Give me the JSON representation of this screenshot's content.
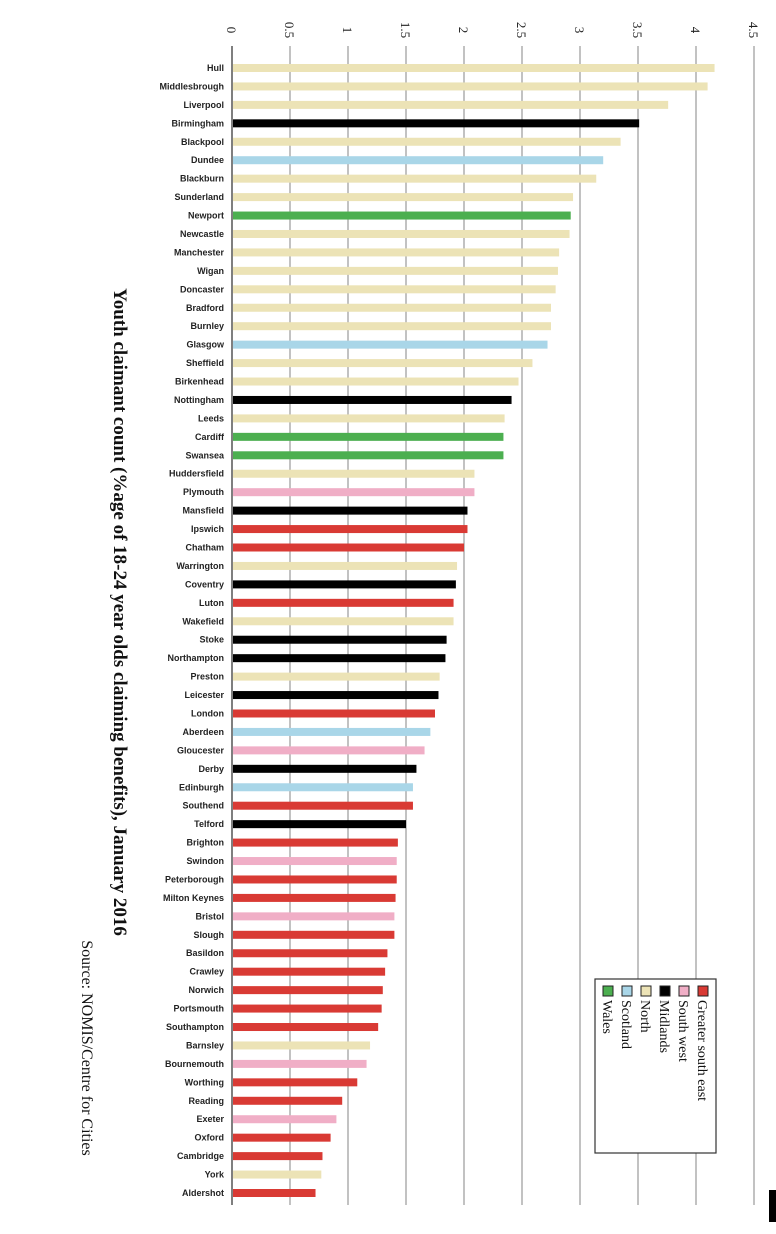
{
  "chart_data": {
    "type": "bar",
    "orientation": "rotated 90 degrees clockwise",
    "title": "Youth claimant count (%age of 18-24 year olds claiming benefits), January 2016",
    "source": "Source: NOMIS/Centre for Cities",
    "xlim": [
      0,
      4.5
    ],
    "ticks": [
      "0",
      "0.5",
      "1",
      "1.5",
      "2",
      "2.5",
      "3",
      "3.5",
      "4",
      "4.5"
    ],
    "tick_values": [
      0,
      0.5,
      1,
      1.5,
      2,
      2.5,
      3,
      3.5,
      4,
      4.5
    ],
    "grid": true,
    "legend_position": "bottom-right",
    "legend": [
      {
        "name": "Greater south east",
        "color": "#d93a34"
      },
      {
        "name": "South west",
        "color": "#f0aec6"
      },
      {
        "name": "Midlands",
        "color": "#000000"
      },
      {
        "name": "North",
        "color": "#ece3b6"
      },
      {
        "name": "Scotland",
        "color": "#a9d6e8"
      },
      {
        "name": "Wales",
        "color": "#4caf50"
      }
    ],
    "categories": [
      "Hull",
      "Middlesbrough",
      "Liverpool",
      "Birmingham",
      "Blackpool",
      "Dundee",
      "Blackburn",
      "Sunderland",
      "Newport",
      "Newcastle",
      "Manchester",
      "Wigan",
      "Doncaster",
      "Bradford",
      "Burnley",
      "Glasgow",
      "Sheffield",
      "Birkenhead",
      "Nottingham",
      "Leeds",
      "Cardiff",
      "Swansea",
      "Huddersfield",
      "Plymouth",
      "Mansfield",
      "Ipswich",
      "Chatham",
      "Warrington",
      "Coventry",
      "Luton",
      "Wakefield",
      "Stoke",
      "Northampton",
      "Preston",
      "Leicester",
      "London",
      "Aberdeen",
      "Gloucester",
      "Derby",
      "Edinburgh",
      "Southend",
      "Telford",
      "Brighton",
      "Swindon",
      "Peterborough",
      "Milton Keynes",
      "Bristol",
      "Slough",
      "Basildon",
      "Crawley",
      "Norwich",
      "Portsmouth",
      "Southampton",
      "Barnsley",
      "Bournemouth",
      "Worthing",
      "Reading",
      "Exeter",
      "Oxford",
      "Cambridge",
      "York",
      "Aldershot"
    ],
    "values": [
      4.16,
      4.1,
      3.76,
      3.51,
      3.35,
      3.2,
      3.14,
      2.94,
      2.92,
      2.91,
      2.82,
      2.81,
      2.79,
      2.75,
      2.75,
      2.72,
      2.59,
      2.47,
      2.41,
      2.35,
      2.34,
      2.34,
      2.09,
      2.09,
      2.03,
      2.03,
      2.0,
      1.94,
      1.93,
      1.91,
      1.91,
      1.85,
      1.84,
      1.79,
      1.78,
      1.75,
      1.71,
      1.66,
      1.59,
      1.56,
      1.56,
      1.5,
      1.43,
      1.42,
      1.42,
      1.41,
      1.4,
      1.4,
      1.34,
      1.32,
      1.3,
      1.29,
      1.26,
      1.19,
      1.16,
      1.08,
      0.95,
      0.9,
      0.85,
      0.78,
      0.77,
      0.72
    ],
    "regions": [
      "North",
      "North",
      "North",
      "Midlands",
      "North",
      "Scotland",
      "North",
      "North",
      "Wales",
      "North",
      "North",
      "North",
      "North",
      "North",
      "North",
      "Scotland",
      "North",
      "North",
      "Midlands",
      "North",
      "Wales",
      "Wales",
      "North",
      "South west",
      "Midlands",
      "Greater south east",
      "Greater south east",
      "North",
      "Midlands",
      "Greater south east",
      "North",
      "Midlands",
      "Midlands",
      "North",
      "Midlands",
      "Greater south east",
      "Scotland",
      "South west",
      "Midlands",
      "Scotland",
      "Greater south east",
      "Midlands",
      "Greater south east",
      "South west",
      "Greater south east",
      "Greater south east",
      "South west",
      "Greater south east",
      "Greater south east",
      "Greater south east",
      "Greater south east",
      "Greater south east",
      "Greater south east",
      "North",
      "South west",
      "Greater south east",
      "Greater south east",
      "South west",
      "Greater south east",
      "Greater south east",
      "North",
      "Greater south east"
    ]
  }
}
